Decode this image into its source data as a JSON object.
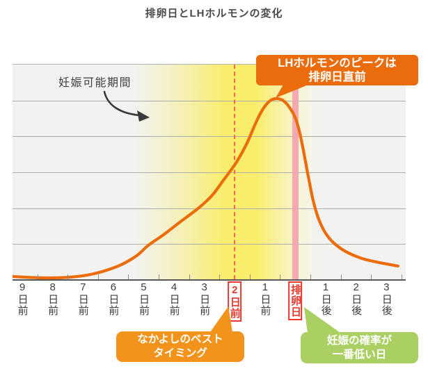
{
  "page_title": "排卵日とLHホルモンの変化",
  "annotations": {
    "fertile_label": "妊娠可能期間",
    "peak_callout": "LHホルモンのピークは\n排卵日直前",
    "best_timing": "なかよしのベスト\nタイミング",
    "lowest_probability": "妊娠の確率が\n一番低い日"
  },
  "colors": {
    "curve_orange": "#ec6c0a",
    "callout_orange": "#ea6c0d",
    "bubble_orange": "#f2941c",
    "bubble_green": "#aacf62",
    "ovulation_bar_pink": "#f4a4af",
    "dashed_line_red": "#f26849",
    "highlight_red": "#e8382d",
    "band_yellow": "#f9ed6b",
    "plot_background": "#f2f2f0",
    "gridline_gray": "#adadab"
  },
  "chart_data": {
    "type": "line",
    "title": "排卵日とLHホルモンの変化",
    "x_labels": [
      "9日前",
      "8日前",
      "7日前",
      "6日前",
      "5日前",
      "4日前",
      "3日前",
      "2日前",
      "1日前",
      "排卵日",
      "1日後",
      "2日後",
      "3日後"
    ],
    "highlighted_x_labels": [
      "2日前",
      "排卵日"
    ],
    "gridline_count": 6,
    "y_range_relative": [
      0,
      100
    ],
    "fertile_window": {
      "label": "妊娠可能期間",
      "from": "5日前",
      "to": "排卵日"
    },
    "markers": {
      "dashed_line_at": "2日前",
      "ovulation_bar_at": "排卵日"
    },
    "series": [
      {
        "name": "LHホルモン",
        "values_at_labels": [
          1.4,
          1.1,
          2.0,
          5.5,
          13.8,
          24.6,
          35.8,
          53.4,
          80.4,
          75.5,
          21.8,
          11.3,
          7.5
        ],
        "peak": {
          "day_offset_from_first_label": 8.36,
          "value_relative": 84.2
        },
        "points_day_value": [
          [
            -0.31,
            1.6
          ],
          [
            0.65,
            1.0
          ],
          [
            1.57,
            1.3
          ],
          [
            2.37,
            2.9
          ],
          [
            3.17,
            6.5
          ],
          [
            3.75,
            11.0
          ],
          [
            4.16,
            16.1
          ],
          [
            4.66,
            21.0
          ],
          [
            5.17,
            26.5
          ],
          [
            5.86,
            33.9
          ],
          [
            6.27,
            39.4
          ],
          [
            6.61,
            45.8
          ],
          [
            7.07,
            54.8
          ],
          [
            7.41,
            63.5
          ],
          [
            7.71,
            73.2
          ],
          [
            7.94,
            79.4
          ],
          [
            8.17,
            83.2
          ],
          [
            8.36,
            84.2
          ],
          [
            8.58,
            83.5
          ],
          [
            8.79,
            80.6
          ],
          [
            9.0,
            75.5
          ],
          [
            9.14,
            69.0
          ],
          [
            9.27,
            60.3
          ],
          [
            9.43,
            48.4
          ],
          [
            9.59,
            37.1
          ],
          [
            9.78,
            28.1
          ],
          [
            10.01,
            21.6
          ],
          [
            10.28,
            17.1
          ],
          [
            10.67,
            13.2
          ],
          [
            11.2,
            10.0
          ],
          [
            11.77,
            8.1
          ],
          [
            12.39,
            6.5
          ]
        ]
      }
    ]
  }
}
